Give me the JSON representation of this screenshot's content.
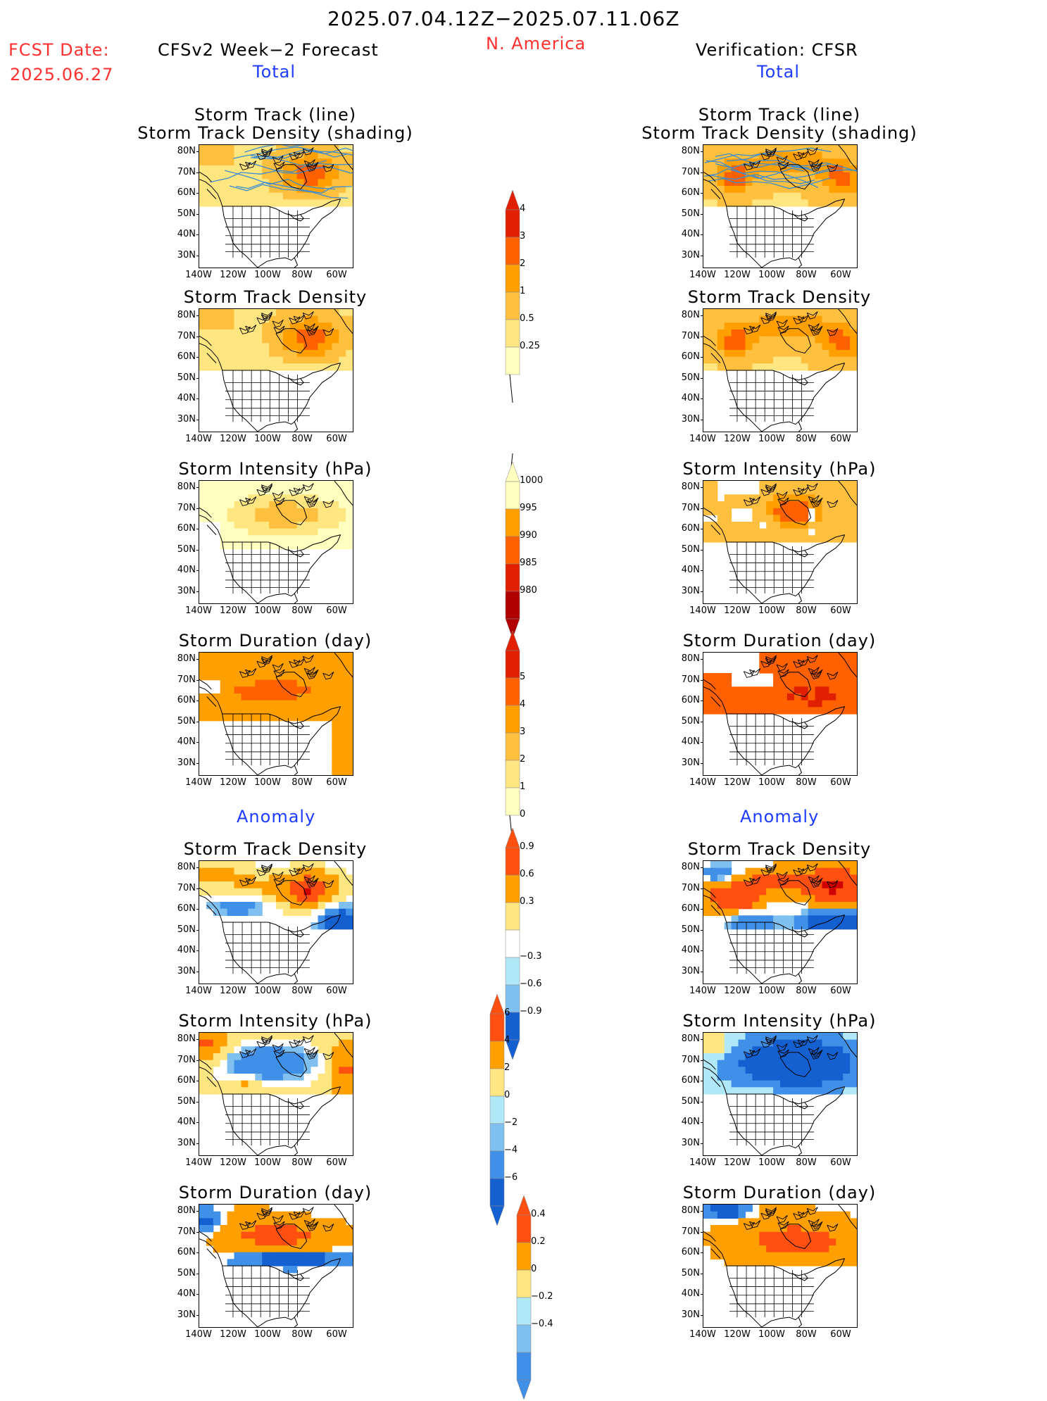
{
  "header": {
    "date_range": "2025.07.04.12Z−2025.07.11.06Z",
    "region": "N. America",
    "fcst_label": "FCST Date:",
    "fcst_date": "2025.06.27",
    "left_title": "CFSv2 Week−2 Forecast",
    "right_title": "Verification: CFSR",
    "total_label": "Total",
    "anomaly_label": "Anomaly"
  },
  "panel_titles": {
    "storm_track_line": "Storm Track (line)",
    "storm_track_density_shading": "Storm Track Density (shading)",
    "storm_track_density": "Storm Track Density",
    "storm_intensity": "Storm Intensity (hPa)",
    "storm_duration": "Storm Duration (day)"
  },
  "axes": {
    "lat_ticks": [
      "80N",
      "70N",
      "60N",
      "50N",
      "40N",
      "30N"
    ],
    "lon_ticks": [
      "140W",
      "120W",
      "100W",
      "80W",
      "60W"
    ]
  },
  "colorbars": {
    "density": [
      "0.25",
      "0.5",
      "1",
      "2",
      "3",
      "4"
    ],
    "intensity": [
      "1000",
      "995",
      "990",
      "985",
      "980"
    ],
    "duration": [
      "0",
      "1",
      "2",
      "3",
      "4",
      "5"
    ],
    "density_anom": [
      "−0.9",
      "−0.6",
      "−0.3",
      "0.3",
      "0.6",
      "0.9"
    ],
    "intensity_anom": [
      "−6",
      "−4",
      "−2",
      "0",
      "2",
      "4",
      "6"
    ],
    "duration_anom": [
      "−0.4",
      "−0.2",
      "0",
      "0.2",
      "0.4"
    ]
  },
  "colors": {
    "warm": [
      "#ffffc0",
      "#ffe680",
      "#ffc040",
      "#ffa000",
      "#ff6000",
      "#e02000",
      "#b00000"
    ],
    "diverging": [
      "#1460d0",
      "#4090e8",
      "#80c0f0",
      "#b0e8f8",
      "#ffffff",
      "#ffe680",
      "#ffa000",
      "#ff5010",
      "#d00000"
    ],
    "track_line": "#3c8cd0"
  }
}
